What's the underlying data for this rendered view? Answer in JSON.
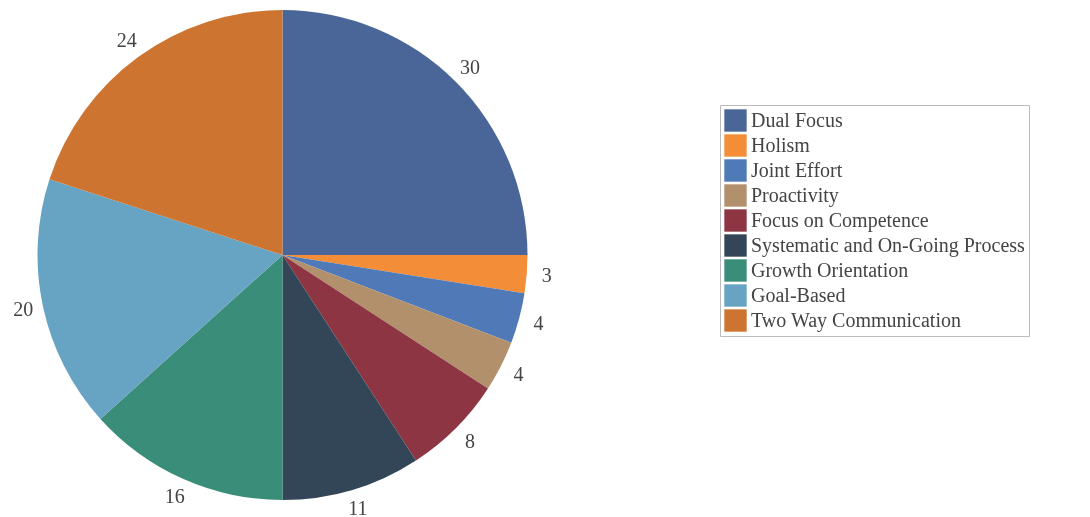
{
  "chart_data": {
    "type": "pie",
    "categories": [
      "Dual Focus",
      "Holism",
      "Joint Effort",
      "Proactivity",
      "Focus on Competence",
      "Systematic and On-Going Process",
      "Growth Orientation",
      "Goal-Based",
      "Two Way Communication"
    ],
    "values": [
      30,
      3,
      4,
      4,
      8,
      11,
      16,
      20,
      24
    ],
    "colors": [
      "#4a6698",
      "#f48d38",
      "#4f79b7",
      "#b3906c",
      "#8e3544",
      "#334657",
      "#3a8d78",
      "#67a3c2",
      "#cc7430"
    ],
    "data_labels": true,
    "legend": "right"
  }
}
